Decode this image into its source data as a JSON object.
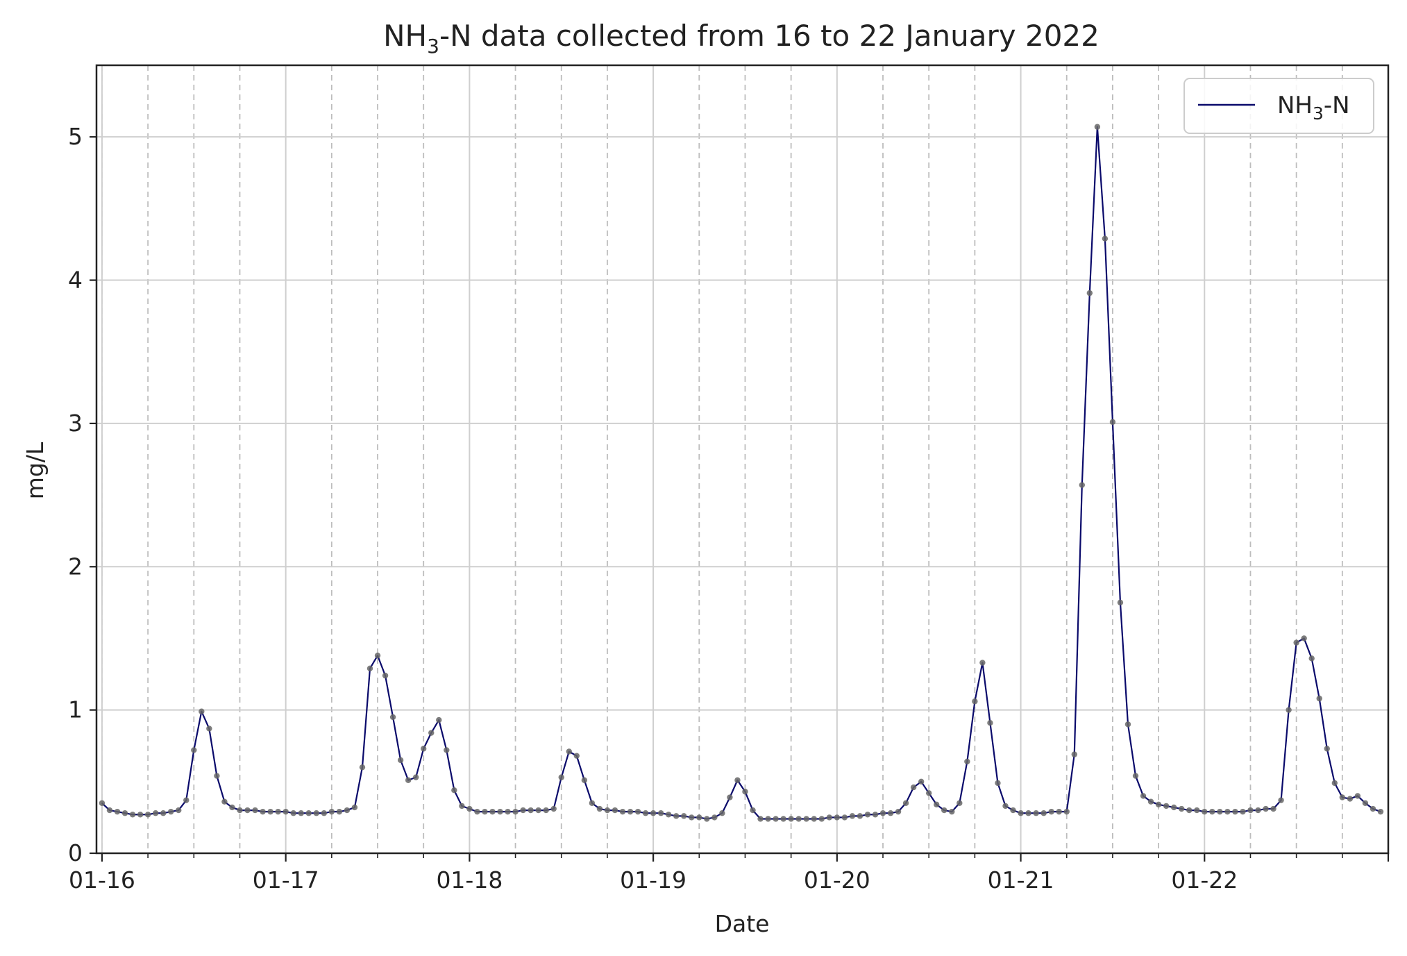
{
  "chart_data": {
    "type": "line",
    "title": {
      "main": "NH",
      "sub": "3",
      "rest": "-N data collected from 16 to 22 January 2022"
    },
    "xlabel": "Date",
    "ylabel": "mg/L",
    "x_tick_labels": [
      "01-16",
      "01-17",
      "01-18",
      "01-19",
      "01-20",
      "01-21",
      "01-22"
    ],
    "y_ticks": [
      0,
      1,
      2,
      3,
      4,
      5
    ],
    "ylim": [
      0,
      5.5
    ],
    "xlim_days": [
      -0.03,
      7.0
    ],
    "grid": true,
    "minor_grid_dashed_every_hours": 6,
    "legend_position": "top-right",
    "series": [
      {
        "name": {
          "main": "NH",
          "sub": "3",
          "rest": "-N"
        },
        "color": "#0a0a6b",
        "marker_color": "#666666",
        "interval_hours": 1,
        "start": "2022-01-16 00:00",
        "values": [
          0.35,
          0.3,
          0.29,
          0.28,
          0.27,
          0.27,
          0.27,
          0.28,
          0.28,
          0.29,
          0.3,
          0.37,
          0.72,
          0.99,
          0.87,
          0.54,
          0.36,
          0.32,
          0.3,
          0.3,
          0.3,
          0.29,
          0.29,
          0.29,
          0.29,
          0.28,
          0.28,
          0.28,
          0.28,
          0.28,
          0.29,
          0.29,
          0.3,
          0.32,
          0.6,
          1.29,
          1.38,
          1.24,
          0.95,
          0.65,
          0.51,
          0.53,
          0.73,
          0.84,
          0.93,
          0.72,
          0.44,
          0.33,
          0.31,
          0.29,
          0.29,
          0.29,
          0.29,
          0.29,
          0.29,
          0.3,
          0.3,
          0.3,
          0.3,
          0.31,
          0.53,
          0.71,
          0.68,
          0.51,
          0.35,
          0.31,
          0.3,
          0.3,
          0.29,
          0.29,
          0.29,
          0.28,
          0.28,
          0.28,
          0.27,
          0.26,
          0.26,
          0.25,
          0.25,
          0.24,
          0.25,
          0.28,
          0.39,
          0.51,
          0.43,
          0.3,
          0.24,
          0.24,
          0.24,
          0.24,
          0.24,
          0.24,
          0.24,
          0.24,
          0.24,
          0.25,
          0.25,
          0.25,
          0.26,
          0.26,
          0.27,
          0.27,
          0.28,
          0.28,
          0.29,
          0.35,
          0.46,
          0.5,
          0.42,
          0.34,
          0.3,
          0.29,
          0.35,
          0.64,
          1.06,
          1.33,
          0.91,
          0.49,
          0.33,
          0.3,
          0.28,
          0.28,
          0.28,
          0.28,
          0.29,
          0.29,
          0.29,
          0.69,
          2.57,
          3.91,
          5.07,
          4.29,
          3.01,
          1.75,
          0.9,
          0.54,
          0.4,
          0.36,
          0.34,
          0.33,
          0.32,
          0.31,
          0.3,
          0.3,
          0.29,
          0.29,
          0.29,
          0.29,
          0.29,
          0.29,
          0.3,
          0.3,
          0.31,
          0.31,
          0.37,
          1.0,
          1.47,
          1.5,
          1.36,
          1.08,
          0.73,
          0.49,
          0.39,
          0.38,
          0.4,
          0.35,
          0.31,
          0.29
        ]
      }
    ]
  }
}
